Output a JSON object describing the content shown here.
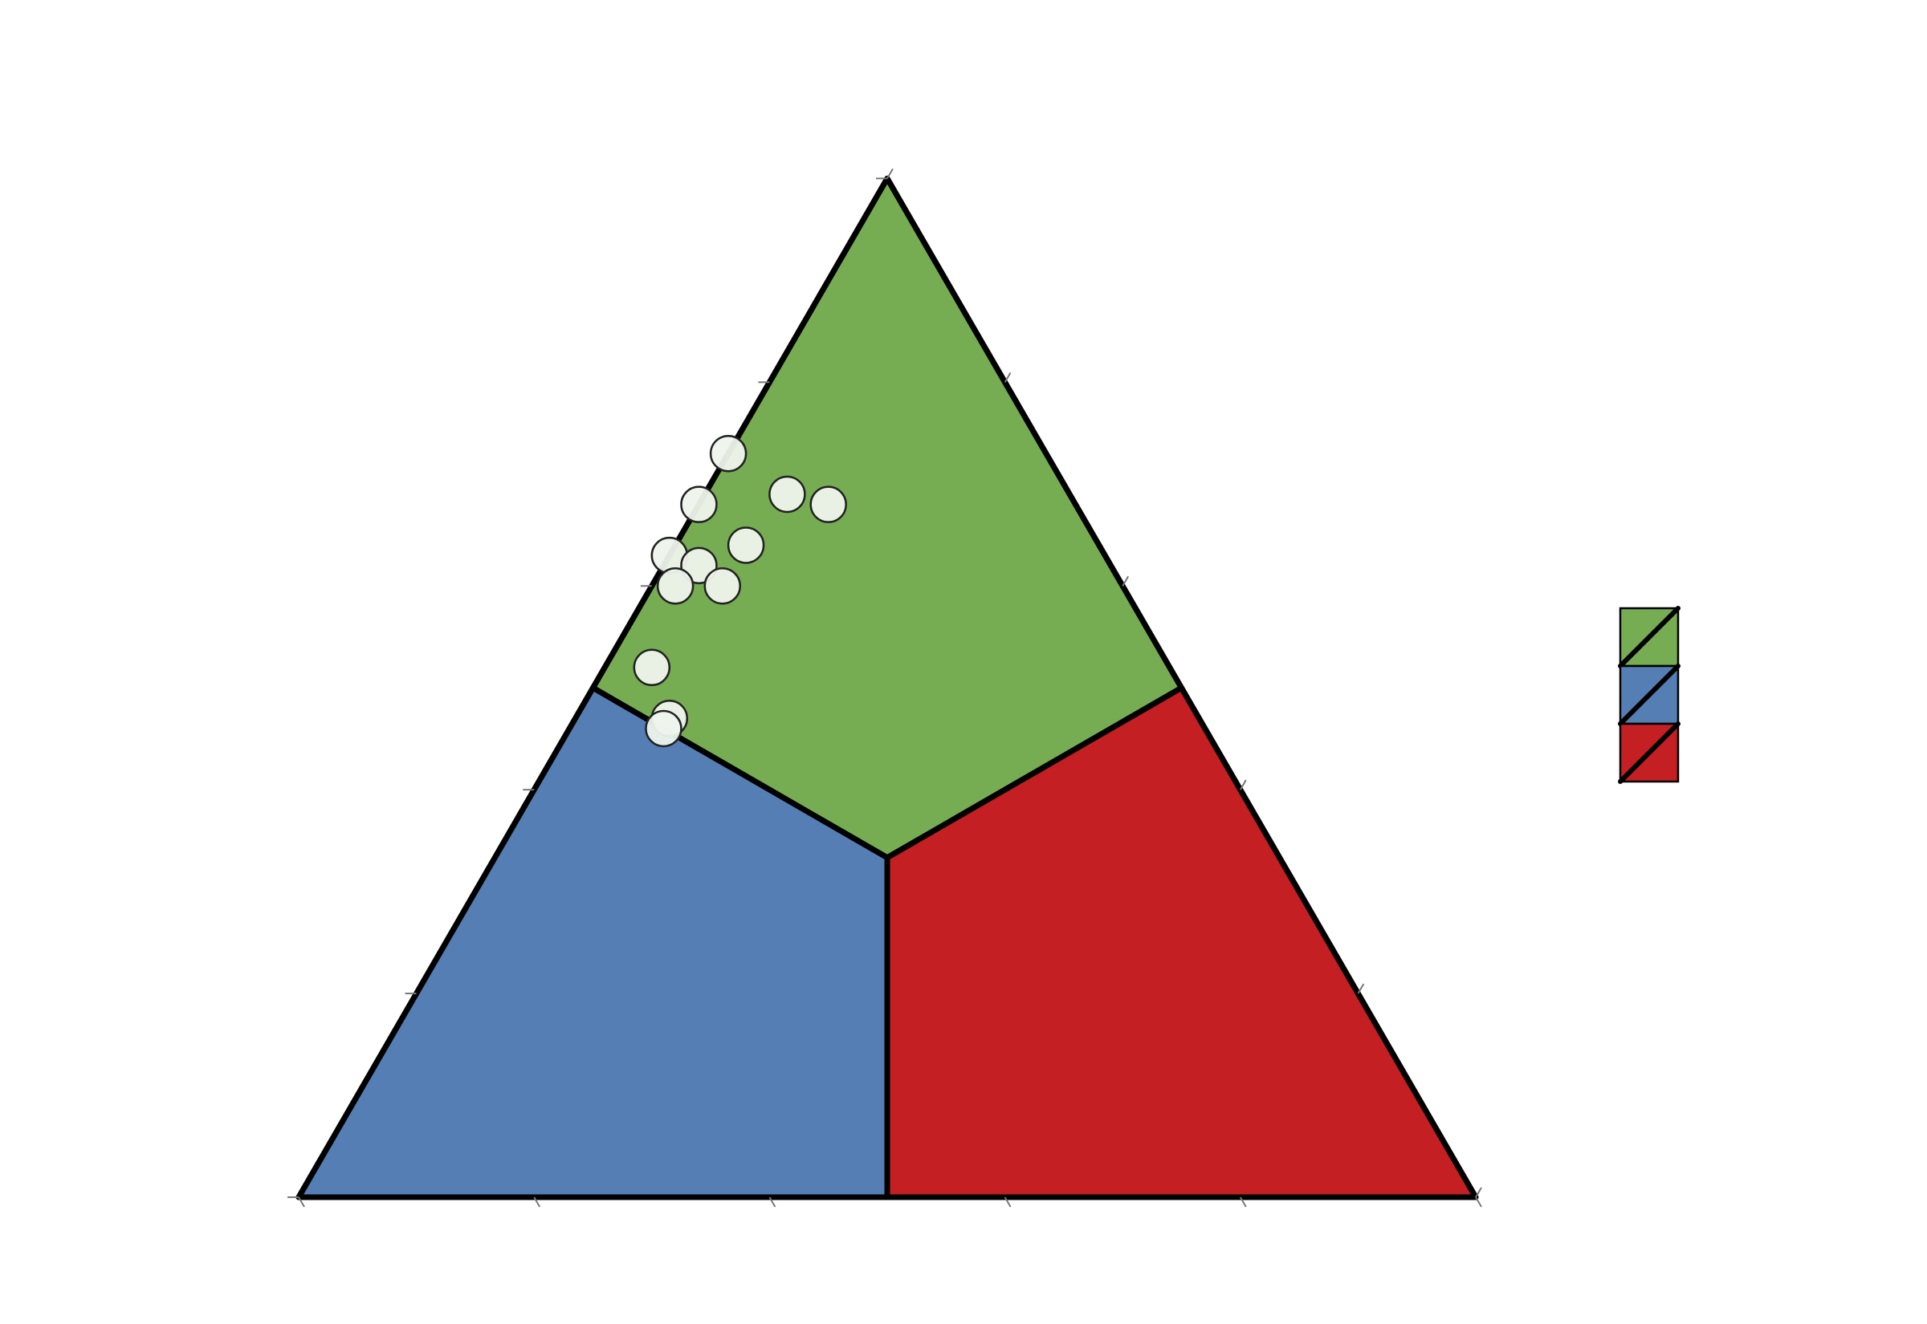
{
  "chart_data": {
    "type": "ternary",
    "a": [
      73,
      68,
      69,
      68,
      64,
      63,
      62,
      60,
      60,
      52,
      47,
      46
    ],
    "b": [
      27,
      32,
      24,
      21,
      30,
      37,
      35,
      34,
      38,
      44,
      45,
      46
    ],
    "c": [
      0,
      0,
      7,
      11,
      6,
      0,
      3,
      6,
      2,
      4,
      8,
      8
    ],
    "marker_color": "#eef4ec",
    "lim": [
      0,
      100
    ],
    "ticks": [
      0,
      20,
      40,
      60,
      80,
      100
    ],
    "region_colors": [
      "#77ad52",
      "#557eb5",
      "#c41f22"
    ],
    "legend": true
  }
}
